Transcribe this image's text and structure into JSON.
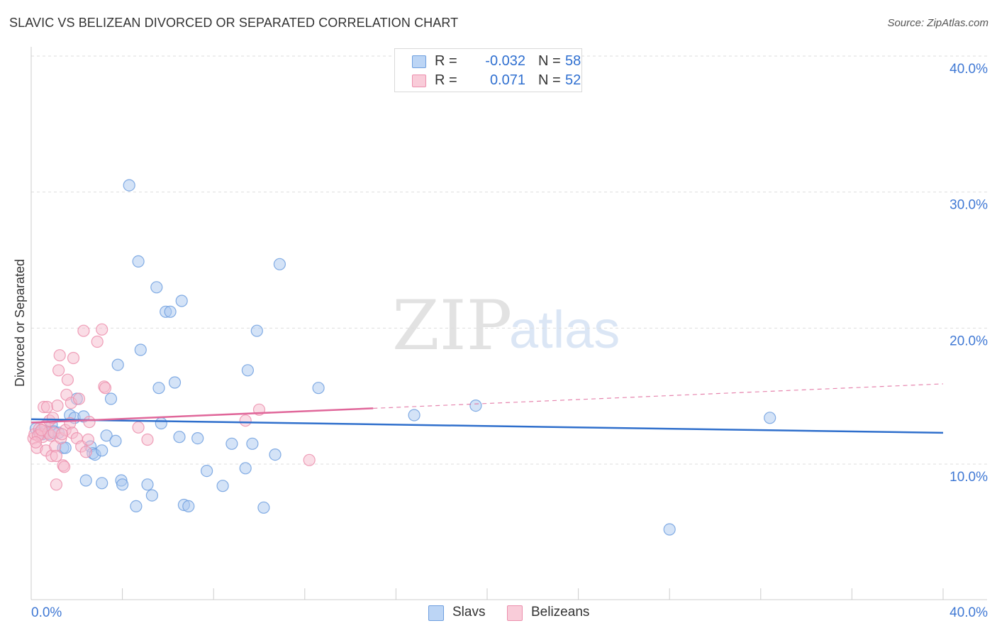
{
  "header": {
    "title": "SLAVIC VS BELIZEAN DIVORCED OR SEPARATED CORRELATION CHART",
    "source": "Source: ZipAtlas.com"
  },
  "watermark": {
    "zip": "ZIP",
    "atlas": "atlas"
  },
  "stats": [
    {
      "r_label": "R =",
      "r_value": "-0.032",
      "n_label": "N =",
      "n_value": "58"
    },
    {
      "r_label": "R =",
      "r_value": "0.071",
      "n_label": "N =",
      "n_value": "52"
    }
  ],
  "legend": {
    "slavs": "Slavs",
    "belizeans": "Belizeans"
  },
  "chart_data": {
    "type": "scatter",
    "title": "SLAVIC VS BELIZEAN DIVORCED OR SEPARATED CORRELATION CHART",
    "xlabel": "",
    "ylabel": "Divorced or Separated",
    "xlim": [
      0,
      40
    ],
    "ylim": [
      0,
      41
    ],
    "x_tick_labels": [
      "0.0%",
      "40.0%"
    ],
    "y_ticks": [
      10,
      20,
      30,
      40
    ],
    "y_tick_labels": [
      "10.0%",
      "20.0%",
      "30.0%",
      "40.0%"
    ],
    "colors": {
      "slavs_fill": "#a9c8f0",
      "slavs_edge": "#6e9fdf",
      "slavs_line": "#2f6fcc",
      "belizeans_fill": "#f6bccd",
      "belizeans_edge": "#ec8fad",
      "belizeans_line": "#e0679a"
    },
    "series": [
      {
        "name": "Slavs",
        "points": [
          [
            0.2,
            12.6
          ],
          [
            0.35,
            12.3
          ],
          [
            0.5,
            12.2
          ],
          [
            0.6,
            12.4
          ],
          [
            0.8,
            12.2
          ],
          [
            0.9,
            12.9
          ],
          [
            1.0,
            12.4
          ],
          [
            1.2,
            12.3
          ],
          [
            1.4,
            11.2
          ],
          [
            1.5,
            11.2
          ],
          [
            1.7,
            13.6
          ],
          [
            1.9,
            13.4
          ],
          [
            2.0,
            14.8
          ],
          [
            2.3,
            13.5
          ],
          [
            2.4,
            8.8
          ],
          [
            2.6,
            11.3
          ],
          [
            2.7,
            10.8
          ],
          [
            2.8,
            10.7
          ],
          [
            3.1,
            11.0
          ],
          [
            3.1,
            8.6
          ],
          [
            3.3,
            12.1
          ],
          [
            3.5,
            14.8
          ],
          [
            3.7,
            11.7
          ],
          [
            3.8,
            17.3
          ],
          [
            3.95,
            8.8
          ],
          [
            4.0,
            8.5
          ],
          [
            4.3,
            30.5
          ],
          [
            4.6,
            6.9
          ],
          [
            4.7,
            24.9
          ],
          [
            4.8,
            18.4
          ],
          [
            5.1,
            8.5
          ],
          [
            5.3,
            7.7
          ],
          [
            5.5,
            23.0
          ],
          [
            5.6,
            15.6
          ],
          [
            5.7,
            13.0
          ],
          [
            5.9,
            21.2
          ],
          [
            6.1,
            21.2
          ],
          [
            6.3,
            16.0
          ],
          [
            6.5,
            12.0
          ],
          [
            6.6,
            22.0
          ],
          [
            6.7,
            7.0
          ],
          [
            6.9,
            6.9
          ],
          [
            7.3,
            11.9
          ],
          [
            7.7,
            9.5
          ],
          [
            8.4,
            8.4
          ],
          [
            8.8,
            11.5
          ],
          [
            9.4,
            9.7
          ],
          [
            9.5,
            16.9
          ],
          [
            9.7,
            11.5
          ],
          [
            9.9,
            19.8
          ],
          [
            10.2,
            6.8
          ],
          [
            10.7,
            10.7
          ],
          [
            10.9,
            24.7
          ],
          [
            12.6,
            15.6
          ],
          [
            16.8,
            13.6
          ],
          [
            19.5,
            14.3
          ],
          [
            28.0,
            5.2
          ],
          [
            32.4,
            13.4
          ]
        ],
        "trend": {
          "x": [
            0,
            40
          ],
          "y": [
            13.3,
            12.3
          ]
        }
      },
      {
        "name": "Belizeans",
        "points": [
          [
            0.1,
            11.9
          ],
          [
            0.15,
            12.2
          ],
          [
            0.25,
            11.2
          ],
          [
            0.35,
            12.6
          ],
          [
            0.4,
            12.2
          ],
          [
            0.5,
            12.0
          ],
          [
            0.55,
            14.2
          ],
          [
            0.6,
            12.8
          ],
          [
            0.65,
            11.0
          ],
          [
            0.7,
            14.2
          ],
          [
            0.75,
            12.3
          ],
          [
            0.8,
            13.2
          ],
          [
            0.85,
            12.1
          ],
          [
            0.9,
            10.6
          ],
          [
            0.95,
            13.4
          ],
          [
            1.0,
            12.3
          ],
          [
            1.05,
            11.3
          ],
          [
            1.1,
            10.6
          ],
          [
            1.1,
            8.5
          ],
          [
            1.15,
            14.3
          ],
          [
            1.2,
            16.9
          ],
          [
            1.25,
            18.0
          ],
          [
            1.3,
            11.9
          ],
          [
            1.4,
            9.9
          ],
          [
            1.45,
            9.8
          ],
          [
            1.5,
            12.5
          ],
          [
            1.55,
            15.1
          ],
          [
            1.6,
            16.2
          ],
          [
            1.7,
            13.0
          ],
          [
            1.75,
            14.5
          ],
          [
            1.8,
            12.3
          ],
          [
            1.85,
            17.8
          ],
          [
            2.0,
            11.9
          ],
          [
            2.1,
            14.8
          ],
          [
            2.2,
            11.3
          ],
          [
            2.3,
            19.8
          ],
          [
            2.4,
            10.9
          ],
          [
            2.5,
            11.8
          ],
          [
            2.55,
            13.1
          ],
          [
            2.9,
            19.0
          ],
          [
            3.1,
            19.9
          ],
          [
            3.2,
            15.7
          ],
          [
            3.25,
            15.6
          ],
          [
            4.7,
            12.7
          ],
          [
            5.1,
            11.8
          ],
          [
            9.4,
            13.2
          ],
          [
            10.0,
            14.0
          ],
          [
            12.2,
            10.3
          ],
          [
            0.3,
            12.1
          ],
          [
            1.35,
            12.2
          ],
          [
            0.45,
            12.5
          ],
          [
            0.2,
            11.6
          ]
        ],
        "trend": {
          "x": [
            0,
            15
          ],
          "y": [
            13.05,
            14.1
          ]
        },
        "trend_dashed": {
          "x": [
            15,
            40
          ],
          "y": [
            14.1,
            15.9
          ]
        }
      }
    ]
  }
}
